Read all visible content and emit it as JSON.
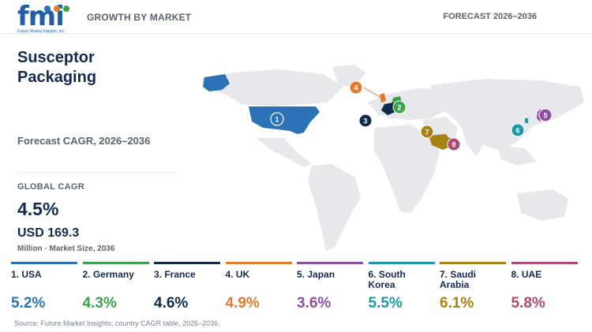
{
  "header": {
    "logo_text": "fmi",
    "logo_sub": "Future Market Insights, Inc.",
    "section": "GROWTH BY MARKET",
    "forecast": "FORECAST 2026–2036"
  },
  "title": "Susceptor Packaging",
  "cagr_heading": "Forecast CAGR, 2026–2036",
  "global": {
    "label": "GLOBAL CAGR",
    "value": "4.5%",
    "market_size": "USD 169.3",
    "market_size_label": "Million · Market Size, 2036"
  },
  "colors": {
    "usa": "#2b73b6",
    "germany": "#3aa24e",
    "france": "#0f2a4a",
    "uk": "#e07b2f",
    "japan": "#8e4fa3",
    "south_korea": "#1b9aa6",
    "saudi_arabia": "#a78316",
    "uae": "#b04a70",
    "land": "#e6e8eb"
  },
  "chart_data": {
    "type": "table",
    "title": "Susceptor Packaging",
    "subtitle": "Forecast CAGR, 2026–2036",
    "categories": [
      "1. USA",
      "2. Germany",
      "3. France",
      "4. UK",
      "5. Japan",
      "6. South Korea",
      "7. Saudi Arabia",
      "8. UAE"
    ],
    "values": [
      5.2,
      4.3,
      4.6,
      4.9,
      3.6,
      5.5,
      6.1,
      5.8
    ],
    "labels": [
      "5.2%",
      "4.3%",
      "4.6%",
      "4.9%",
      "3.6%",
      "5.5%",
      "6.1%",
      "5.8%"
    ],
    "map_markers": [
      "1",
      "2",
      "3",
      "4",
      "5",
      "6",
      "7",
      "8"
    ]
  },
  "source": "Source: Future Market Insights; country CAGR table, 2026–2036."
}
